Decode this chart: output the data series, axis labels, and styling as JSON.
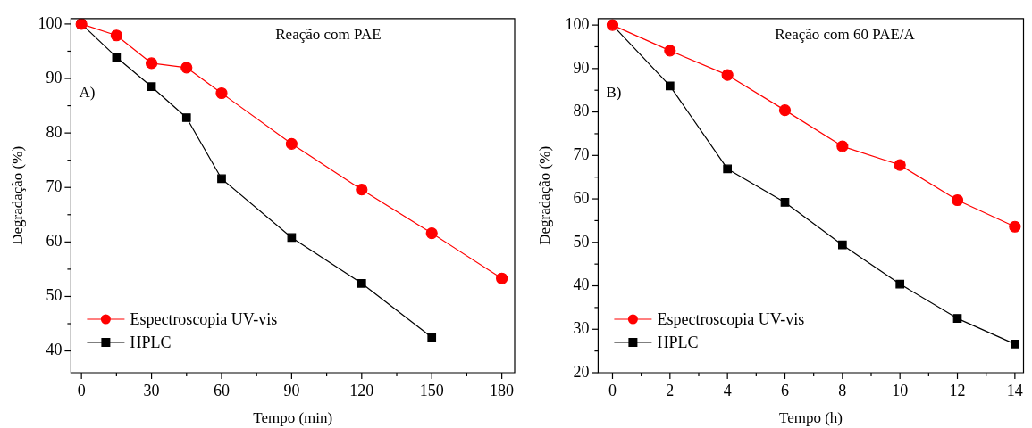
{
  "chart_data": [
    {
      "type": "line",
      "xlabel": "Tempo (min)",
      "ylabel": "Degradação (%)",
      "annotations": [
        "Reação com PAE",
        "A)"
      ],
      "legend": "bottom left",
      "line_style": "solid",
      "xlim": [
        -4.5,
        185.5
      ],
      "ylim": [
        36,
        101
      ],
      "xticks": [
        0,
        {
          "value": 15,
          "label": null
        },
        30,
        {
          "value": 45,
          "label": null
        },
        60,
        {
          "value": 75,
          "label": null
        },
        90,
        {
          "value": 105,
          "label": null
        },
        120,
        {
          "value": 135,
          "label": null
        },
        150,
        {
          "value": 165,
          "label": null
        },
        180
      ],
      "yticks": [
        40,
        {
          "value": 45,
          "label": null
        },
        50,
        {
          "value": 55,
          "label": null
        },
        60,
        {
          "value": 65,
          "label": null
        },
        70,
        {
          "value": 75,
          "label": null
        },
        80,
        {
          "value": 85,
          "label": null
        },
        90,
        {
          "value": 95,
          "label": null
        },
        100
      ],
      "series": [
        {
          "name": "Espectroscopia UV-vis",
          "color": "#ff0000",
          "marker": "circle",
          "x": [
            0,
            15,
            30,
            45,
            60,
            90,
            120,
            150,
            180
          ],
          "values": [
            100,
            97.9,
            92.8,
            92,
            87.3,
            78,
            69.6,
            61.6,
            53.3
          ]
        },
        {
          "name": "HPLC",
          "color": "#000000",
          "marker": "square",
          "x": [
            0,
            15,
            30,
            45,
            60,
            90,
            120,
            150
          ],
          "values": [
            100,
            93.9,
            88.5,
            82.8,
            71.6,
            60.8,
            52.4,
            42.5
          ]
        }
      ]
    },
    {
      "type": "line",
      "xlabel": "Tempo (h)",
      "ylabel": "Degradação (%)",
      "annotations": [
        "Reação com 60 PAE/A",
        "B)"
      ],
      "legend": "bottom left",
      "line_style": "solid",
      "xlim": [
        -0.5,
        14.3
      ],
      "ylim": [
        20,
        101.5
      ],
      "xticks": [
        0,
        {
          "value": 1,
          "label": null
        },
        2,
        {
          "value": 3,
          "label": null
        },
        4,
        {
          "value": 5,
          "label": null
        },
        6,
        {
          "value": 7,
          "label": null
        },
        8,
        {
          "value": 9,
          "label": null
        },
        10,
        {
          "value": 11,
          "label": null
        },
        12,
        {
          "value": 13,
          "label": null
        },
        14
      ],
      "yticks": [
        20,
        {
          "value": 25,
          "label": null
        },
        30,
        {
          "value": 35,
          "label": null
        },
        40,
        {
          "value": 45,
          "label": null
        },
        50,
        {
          "value": 55,
          "label": null
        },
        60,
        {
          "value": 65,
          "label": null
        },
        70,
        {
          "value": 75,
          "label": null
        },
        80,
        {
          "value": 85,
          "label": null
        },
        90,
        {
          "value": 95,
          "label": null
        },
        100
      ],
      "series": [
        {
          "name": "Espectroscopia UV-vis",
          "color": "#ff0000",
          "marker": "circle",
          "x": [
            0,
            2,
            4,
            6,
            8,
            10,
            12,
            14
          ],
          "values": [
            100,
            94.1,
            88.5,
            80.4,
            72.1,
            67.8,
            59.7,
            53.6
          ]
        },
        {
          "name": "HPLC",
          "color": "#000000",
          "marker": "square",
          "x": [
            0,
            2,
            4,
            6,
            8,
            10,
            12,
            14
          ],
          "values": [
            100,
            86,
            66.9,
            59.2,
            49.4,
            40.4,
            32.5,
            26.6
          ]
        }
      ]
    }
  ]
}
